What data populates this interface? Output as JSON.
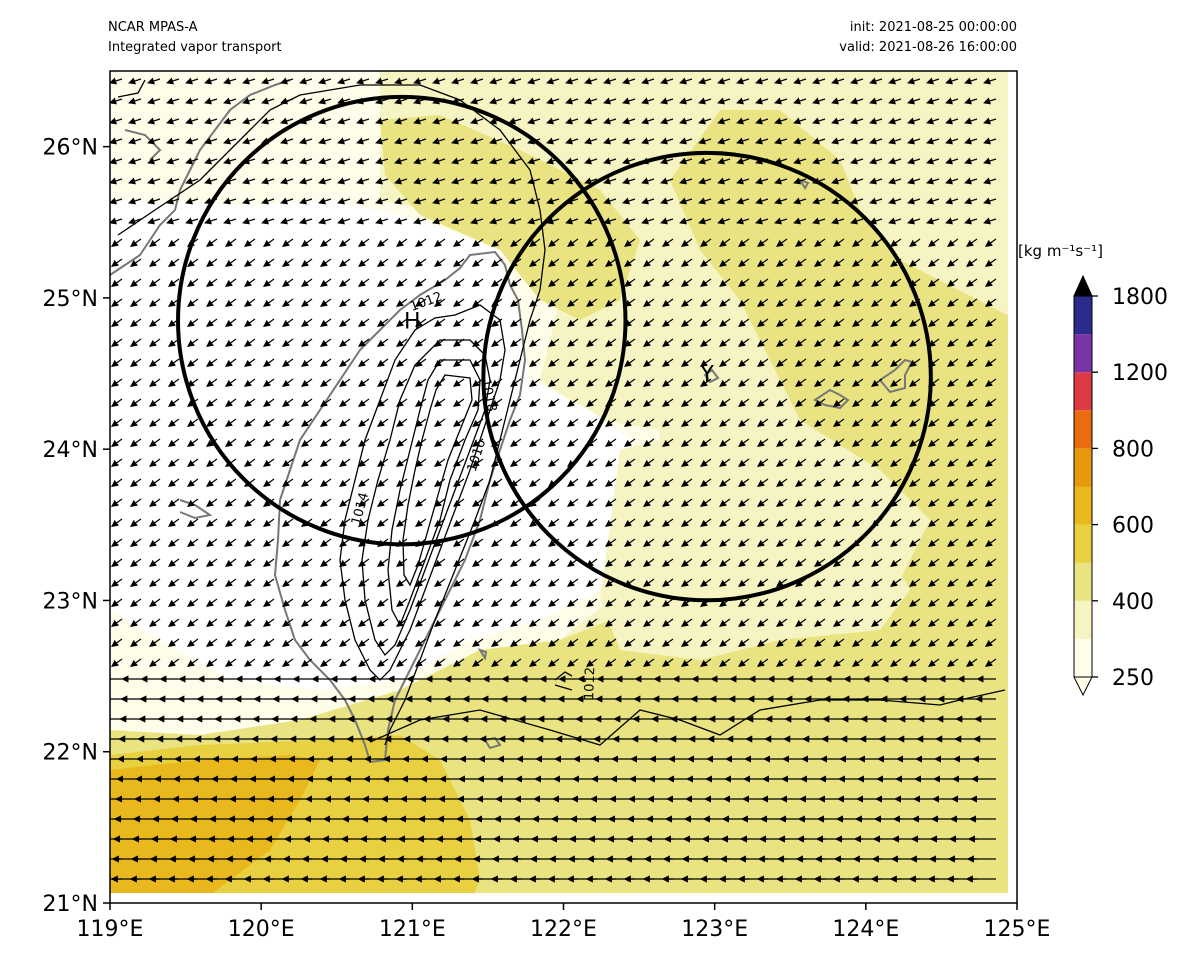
{
  "header": {
    "model": "NCAR MPAS-A",
    "field": "Integrated vapor transport",
    "init": "init: 2021-08-25 00:00:00",
    "valid": "valid: 2021-08-26 16:00:00"
  },
  "map": {
    "lon_range": [
      119,
      125
    ],
    "lat_range": [
      21,
      26.5
    ],
    "x_ticks": [
      {
        "value": 119,
        "label": "119°E"
      },
      {
        "value": 120,
        "label": "120°E"
      },
      {
        "value": 121,
        "label": "121°E"
      },
      {
        "value": 122,
        "label": "122°E"
      },
      {
        "value": 123,
        "label": "123°E"
      },
      {
        "value": 124,
        "label": "124°E"
      },
      {
        "value": 125,
        "label": "125°E"
      }
    ],
    "y_ticks": [
      {
        "value": 21,
        "label": "21°N"
      },
      {
        "value": 22,
        "label": "22°N"
      },
      {
        "value": 23,
        "label": "23°N"
      },
      {
        "value": 24,
        "label": "24°N"
      },
      {
        "value": 25,
        "label": "25°N"
      },
      {
        "value": 26,
        "label": "26°N"
      }
    ],
    "markers": [
      {
        "label": "H",
        "lon": 121.0,
        "lat": 24.85
      },
      {
        "label": "Y",
        "lon": 122.95,
        "lat": 24.5
      }
    ],
    "circles": [
      {
        "name": "circle-h",
        "lon": 120.93,
        "lat": 24.85,
        "radius_deg": 1.48
      },
      {
        "name": "circle-y",
        "lon": 122.95,
        "lat": 24.48,
        "radius_deg": 1.48
      }
    ],
    "contour_labels": [
      {
        "text": "1012",
        "lon": 121.1,
        "lat": 24.95,
        "rot": -20
      },
      {
        "text": "1018",
        "lon": 121.48,
        "lat": 24.35,
        "rot": 78
      },
      {
        "text": "1016",
        "lon": 121.45,
        "lat": 23.95,
        "rot": -72
      },
      {
        "text": "1014",
        "lon": 120.68,
        "lat": 23.6,
        "rot": -75
      },
      {
        "text": "1012",
        "lon": 122.2,
        "lat": 22.45,
        "rot": -88
      }
    ]
  },
  "colorbar": {
    "unit_label": "[kg m⁻¹s⁻¹]",
    "extend": "both",
    "colors": [
      "#fdfdea",
      "#f5f4c2",
      "#e9e481",
      "#e8d040",
      "#e8b81c",
      "#e7980e",
      "#ea6b10",
      "#dc3a45",
      "#7b34a8",
      "#2c2a8c"
    ],
    "tick_labels": [
      "250",
      "400",
      "600",
      "800",
      "1200",
      "1800"
    ],
    "tick_levels": [
      0,
      2,
      4,
      6,
      8,
      10
    ]
  },
  "colors": {
    "land_outline": "#777777",
    "frame": "#000000"
  }
}
